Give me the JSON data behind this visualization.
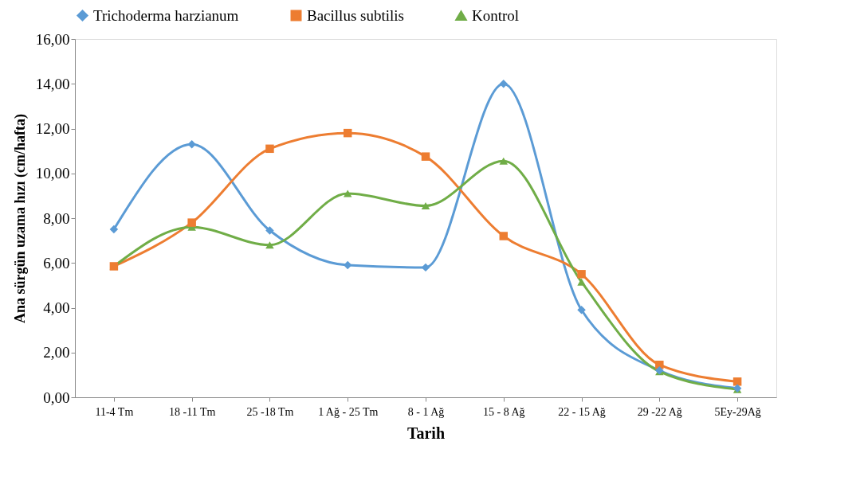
{
  "chart_data": {
    "type": "line",
    "xlabel": "Tarih",
    "ylabel": "Ana sürgün uzama hızı (cm/hafta)",
    "categories": [
      "11-4 Tm",
      "18 -11 Tm",
      "25 -18 Tm",
      "1 Ağ - 25 Tm",
      "8 - 1 Ağ",
      "15 - 8 Ağ",
      "22 - 15 Ağ",
      "29 -22 Ağ",
      "5Ey-29Ağ"
    ],
    "series": [
      {
        "name": "Trichoderma harzianum",
        "color": "#5b9bd5",
        "marker": "diamond",
        "values": [
          7.5,
          11.3,
          7.45,
          5.9,
          5.8,
          14.0,
          3.9,
          1.2,
          0.4
        ]
      },
      {
        "name": "Bacillus subtilis",
        "color": "#ed7d31",
        "marker": "square",
        "values": [
          5.85,
          7.8,
          11.1,
          11.8,
          10.75,
          7.2,
          5.5,
          1.45,
          0.7
        ]
      },
      {
        "name": "Kontrol",
        "color": "#70ad47",
        "marker": "triangle",
        "values": [
          5.85,
          7.6,
          6.8,
          9.1,
          8.55,
          10.55,
          5.15,
          1.15,
          0.35
        ]
      }
    ],
    "ylim": [
      0,
      16
    ],
    "yticks": [
      {
        "value": 0,
        "label": "0,00"
      },
      {
        "value": 2,
        "label": "2,00"
      },
      {
        "value": 4,
        "label": "4,00"
      },
      {
        "value": 6,
        "label": "6,00"
      },
      {
        "value": 8,
        "label": "8,00"
      },
      {
        "value": 10,
        "label": "10,00"
      },
      {
        "value": 12,
        "label": "12,00"
      },
      {
        "value": 14,
        "label": "14,00"
      },
      {
        "value": 16,
        "label": "16,00"
      }
    ],
    "grid": false,
    "legend": "top",
    "line_style": "solid"
  }
}
